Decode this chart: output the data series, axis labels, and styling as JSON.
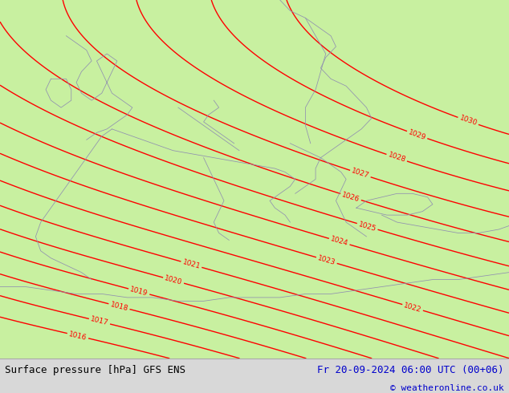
{
  "title_left": "Surface pressure [hPa] GFS ENS",
  "title_right": "Fr 20-09-2024 06:00 UTC (00+06)",
  "copyright": "© weatheronline.co.uk",
  "background_color": "#c8f0a0",
  "contour_color": "#ff0000",
  "border_color": "#9090b0",
  "text_color_left": "#000000",
  "text_color_right": "#0000cc",
  "bottom_bg": "#d8d8d8",
  "pressure_levels": [
    1016,
    1017,
    1018,
    1019,
    1020,
    1021,
    1022,
    1023,
    1024,
    1025,
    1026,
    1027,
    1028,
    1029,
    1030
  ],
  "figsize": [
    6.34,
    4.9
  ],
  "dpi": 100
}
